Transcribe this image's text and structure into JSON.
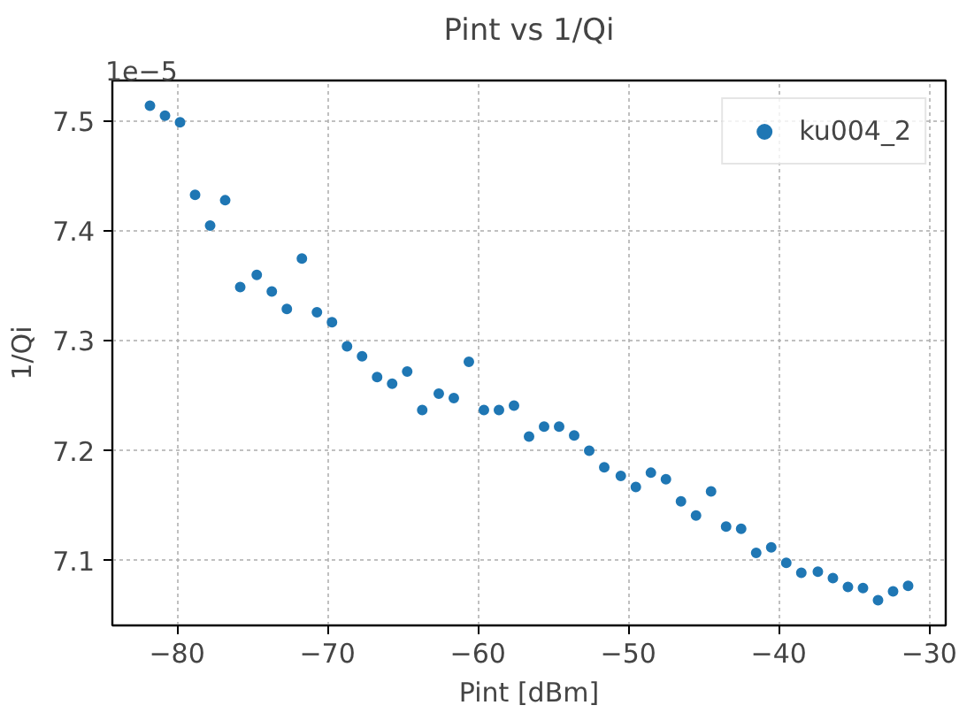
{
  "chart_data": {
    "type": "scatter",
    "title": "Pint vs 1/Qi",
    "xlabel": "Pint [dBm]",
    "ylabel": "1/Qi",
    "annotations": [
      "1e−5"
    ],
    "x": [
      -81.8,
      -80.8,
      -79.8,
      -78.8,
      -77.8,
      -76.8,
      -75.8,
      -74.7,
      -73.7,
      -72.7,
      -71.7,
      -70.7,
      -69.7,
      -68.7,
      -67.7,
      -66.7,
      -65.7,
      -64.7,
      -63.7,
      -62.6,
      -61.6,
      -60.6,
      -59.6,
      -58.6,
      -57.6,
      -56.6,
      -55.6,
      -54.6,
      -53.6,
      -52.6,
      -51.6,
      -50.5,
      -49.5,
      -48.5,
      -47.5,
      -46.5,
      -45.5,
      -44.5,
      -43.5,
      -42.5,
      -41.5,
      -40.5,
      -39.5,
      -38.5,
      -37.4,
      -36.4,
      -35.4,
      -34.4,
      -33.4,
      -32.4,
      -31.4
    ],
    "series": [
      {
        "name": "ku004_2",
        "color": "#1f77b4",
        "values": [
          7.514,
          7.505,
          7.499,
          7.433,
          7.405,
          7.428,
          7.349,
          7.36,
          7.345,
          7.329,
          7.375,
          7.326,
          7.317,
          7.295,
          7.286,
          7.267,
          7.261,
          7.272,
          7.237,
          7.252,
          7.248,
          7.281,
          7.237,
          7.237,
          7.241,
          7.213,
          7.222,
          7.222,
          7.214,
          7.2,
          7.185,
          7.177,
          7.167,
          7.18,
          7.174,
          7.154,
          7.141,
          7.163,
          7.131,
          7.129,
          7.107,
          7.112,
          7.098,
          7.089,
          7.09,
          7.084,
          7.076,
          7.075,
          7.064,
          7.072,
          7.077
        ]
      }
    ],
    "xlim": [
      -84.3,
      -28.9
    ],
    "ylim": [
      7.041,
      7.537
    ],
    "xticks": [
      -80,
      -70,
      -60,
      -50,
      -40,
      -30
    ],
    "yticks": [
      7.1,
      7.2,
      7.3,
      7.4,
      7.5
    ],
    "grid": true,
    "legend": "top right",
    "marker": "circle"
  }
}
